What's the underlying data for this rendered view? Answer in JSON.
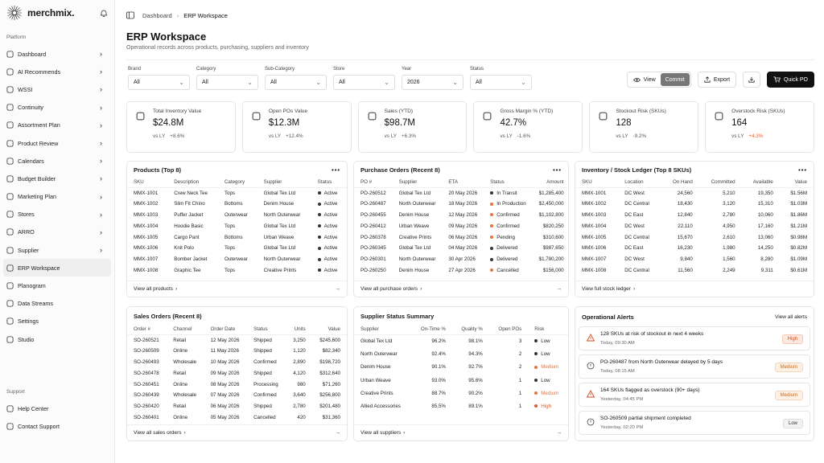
{
  "app": {
    "name": "merchmix."
  },
  "sidebar": {
    "section_platform": "Platform",
    "items": [
      {
        "label": "Dashboard",
        "icon": "dashboard-icon"
      },
      {
        "label": "AI Recommends",
        "icon": "ai-icon"
      },
      {
        "label": "WSSI",
        "icon": "wssi-icon"
      },
      {
        "label": "Continuity",
        "icon": "continuity-icon"
      },
      {
        "label": "Assortment Plan",
        "icon": "assortment-icon"
      },
      {
        "label": "Product Review",
        "icon": "product-review-icon"
      },
      {
        "label": "Calendars",
        "icon": "calendar-icon"
      },
      {
        "label": "Budget Builder",
        "icon": "budget-icon"
      },
      {
        "label": "Marketing Plan",
        "icon": "marketing-icon"
      },
      {
        "label": "Stores",
        "icon": "store-icon"
      },
      {
        "label": "ARRO",
        "icon": "arro-icon"
      },
      {
        "label": "Supplier",
        "icon": "supplier-icon"
      },
      {
        "label": "ERP Workspace",
        "icon": "erp-icon"
      },
      {
        "label": "Planogram",
        "icon": "planogram-icon"
      },
      {
        "label": "Data Streams",
        "icon": "data-streams-icon"
      },
      {
        "label": "Settings",
        "icon": "settings-icon"
      },
      {
        "label": "Studio",
        "icon": "studio-icon"
      }
    ],
    "section_support": "Support",
    "support_items": [
      {
        "label": "Help Center",
        "icon": "help-icon"
      },
      {
        "label": "Contact Support",
        "icon": "contact-icon"
      }
    ]
  },
  "breadcrumb": {
    "root": "Dashboard",
    "current": "ERP Workspace"
  },
  "page": {
    "title": "ERP Workspace",
    "subtitle": "Operational records across products, purchasing, suppliers and inventory"
  },
  "filters": [
    {
      "label": "Brand",
      "value": "All"
    },
    {
      "label": "Category",
      "value": "All"
    },
    {
      "label": "Sub-Category",
      "value": "All"
    },
    {
      "label": "Store",
      "value": "All"
    },
    {
      "label": "Year",
      "value": "2026"
    },
    {
      "label": "Status",
      "value": "All"
    }
  ],
  "actions": {
    "view": "View",
    "commit": "Commit",
    "export": "Export",
    "quick_po": "Quick PO"
  },
  "kpis": [
    {
      "label": "Total Inventory Value",
      "value": "$24.8M",
      "vs": "vs LY",
      "delta": "+8.6%",
      "trend": "pos",
      "icon": "box-icon"
    },
    {
      "label": "Open POs Value",
      "value": "$12.3M",
      "vs": "vs LY",
      "delta": "+12.4%",
      "trend": "pos",
      "icon": "clipboard-icon"
    },
    {
      "label": "Sales (YTD)",
      "value": "$98.7M",
      "vs": "vs LY",
      "delta": "+6.3%",
      "trend": "pos",
      "icon": "trend-up-icon"
    },
    {
      "label": "Gross Margin % (YTD)",
      "value": "42.7%",
      "vs": "vs LY",
      "delta": "-1.6%",
      "trend": "pos",
      "icon": "pie-icon"
    },
    {
      "label": "Stockout Risk (SKUs)",
      "value": "128",
      "vs": "vs LY",
      "delta": "-9.2%",
      "trend": "pos",
      "icon": "warning-icon"
    },
    {
      "label": "Overstock Risk (SKUs)",
      "value": "164",
      "vs": "vs LY",
      "delta": "+4.3%",
      "trend": "neg",
      "icon": "stack-icon"
    }
  ],
  "products": {
    "title": "Products (Top 8)",
    "more": "•••",
    "columns": [
      "SKU",
      "Description",
      "Category",
      "Supplier",
      "Status"
    ],
    "rows": [
      [
        "MMX-1001",
        "Crew Neck Tee",
        "Tops",
        "Global Tex Ltd",
        "Active"
      ],
      [
        "MMX-1002",
        "Slim Fit Chino",
        "Bottoms",
        "Denim House",
        "Active"
      ],
      [
        "MMX-1003",
        "Puffer Jacket",
        "Outerwear",
        "North Outerwear",
        "Active"
      ],
      [
        "MMX-1004",
        "Hoodie Basic",
        "Tops",
        "Global Tex Ltd",
        "Active"
      ],
      [
        "MMX-1005",
        "Cargo Pant",
        "Bottoms",
        "Urban Weave",
        "Active"
      ],
      [
        "MMX-1006",
        "Knit Polo",
        "Tops",
        "Global Tex Ltd",
        "Active"
      ],
      [
        "MMX-1007",
        "Bomber Jacket",
        "Outerwear",
        "North Outerwear",
        "Active"
      ],
      [
        "MMX-1008",
        "Graphic Tee",
        "Tops",
        "Creative Prints",
        "Active"
      ]
    ],
    "footer": "View all products"
  },
  "purchase_orders": {
    "title": "Purchase Orders (Recent 8)",
    "more": "•••",
    "columns": [
      "PO #",
      "Supplier",
      "ETA",
      "Status",
      "Amount"
    ],
    "rows": [
      [
        "PO-260512",
        "Global Tex Ltd",
        "20 May 2026",
        "In Transit",
        "$1,285,400"
      ],
      [
        "PO-260487",
        "North Outerwear",
        "18 May 2026",
        "In Production",
        "$2,450,000"
      ],
      [
        "PO-260455",
        "Denim House",
        "12 May 2026",
        "Confirmed",
        "$1,102,800"
      ],
      [
        "PO-260412",
        "Urban Weave",
        "09 May 2026",
        "Confirmed",
        "$820,250"
      ],
      [
        "PO-260378",
        "Creative Prints",
        "06 May 2026",
        "Pending",
        "$310,600"
      ],
      [
        "PO-260345",
        "Global Tex Ltd",
        "04 May 2026",
        "Delivered",
        "$987,650"
      ],
      [
        "PO-260301",
        "North Outerwear",
        "30 Apr 2026",
        "Delivered",
        "$1,780,200"
      ],
      [
        "PO-260250",
        "Denim House",
        "27 Apr 2026",
        "Cancelled",
        "$156,000"
      ]
    ],
    "status_colors": {
      "In Transit": "#333333",
      "In Production": "#e8743b",
      "Confirmed": "#e8743b",
      "Pending": "#e8743b",
      "Delivered": "#333333",
      "Cancelled": "#e8743b"
    },
    "footer": "View all purchase orders"
  },
  "inventory": {
    "title": "Inventory / Stock Ledger (Top 8 SKUs)",
    "more": "•••",
    "columns": [
      "SKU",
      "Location",
      "On Hand",
      "Committed",
      "Available",
      "Value"
    ],
    "rows": [
      [
        "MMX-1001",
        "DC West",
        "24,560",
        "5,210",
        "19,350",
        "$1.56M"
      ],
      [
        "MMX-1002",
        "DC Central",
        "18,430",
        "3,120",
        "15,310",
        "$1.03M"
      ],
      [
        "MMX-1003",
        "DC East",
        "12,840",
        "2,780",
        "10,060",
        "$1.86M"
      ],
      [
        "MMX-1004",
        "DC West",
        "22,110",
        "4,950",
        "17,160",
        "$1.21M"
      ],
      [
        "MMX-1005",
        "DC Central",
        "15,670",
        "2,610",
        "13,060",
        "$0.98M"
      ],
      [
        "MMX-1006",
        "DC East",
        "16,230",
        "1,980",
        "14,250",
        "$0.82M"
      ],
      [
        "MMX-1007",
        "DC West",
        "9,840",
        "1,560",
        "8,280",
        "$1.09M"
      ],
      [
        "MMX-1008",
        "DC Central",
        "11,560",
        "2,249",
        "9,311",
        "$0.61M"
      ]
    ],
    "footer": "View full stock ledger"
  },
  "sales_orders": {
    "title": "Sales Orders (Recent 8)",
    "columns": [
      "Order #",
      "Channel",
      "Order Date",
      "Status",
      "Units",
      "Value"
    ],
    "rows": [
      [
        "SO-260521",
        "Retail",
        "12 May 2026",
        "Shipped",
        "3,250",
        "$245,600"
      ],
      [
        "SO-260509",
        "Online",
        "11 May 2026",
        "Shipped",
        "1,120",
        "$82,340"
      ],
      [
        "SO-260493",
        "Wholesale",
        "10 May 2026",
        "Confirmed",
        "2,890",
        "$198,720"
      ],
      [
        "SO-260478",
        "Retail",
        "09 May 2026",
        "Shipped",
        "4,120",
        "$312,640"
      ],
      [
        "SO-260451",
        "Online",
        "08 May 2026",
        "Processing",
        "980",
        "$71,260"
      ],
      [
        "SO-260439",
        "Wholesale",
        "07 May 2026",
        "Confirmed",
        "3,640",
        "$256,800"
      ],
      [
        "SO-260420",
        "Retail",
        "06 May 2026",
        "Shipped",
        "2,780",
        "$201,480"
      ],
      [
        "SO-260401",
        "Online",
        "05 May 2026",
        "Cancelled",
        "420",
        "$31,360"
      ]
    ],
    "footer": "View all sales orders"
  },
  "supplier_status": {
    "title": "Supplier Status Summary",
    "columns": [
      "Supplier",
      "On-Time %",
      "Quality %",
      "Open POs",
      "Risk"
    ],
    "rows": [
      [
        "Global Tex Ltd",
        "96.2%",
        "98.1%",
        "3",
        "Low"
      ],
      [
        "North Outerwear",
        "92.4%",
        "94.3%",
        "2",
        "Low"
      ],
      [
        "Denim House",
        "90.1%",
        "92.7%",
        "2",
        "Medium"
      ],
      [
        "Urban Weave",
        "93.0%",
        "95.6%",
        "1",
        "Low"
      ],
      [
        "Creative Prints",
        "88.7%",
        "90.2%",
        "1",
        "Medium"
      ],
      [
        "Allied Accessories",
        "85.5%",
        "89.1%",
        "1",
        "High"
      ]
    ],
    "risk_colors": {
      "Low": "#333333",
      "Medium": "#e8743b",
      "High": "#e05a2b"
    },
    "footer": "View all suppliers"
  },
  "alerts": {
    "title": "Operational Alerts",
    "view_all": "View all alerts",
    "items": [
      {
        "text": "128 SKUs at risk of stockout in next 4 weeks",
        "time": "Today, 09:30 AM",
        "level": "High",
        "icon": "warning-icon"
      },
      {
        "text": "PO-260487 from North Outerwear delayed by 5 days",
        "time": "Today, 08:15 AM",
        "level": "Medium",
        "icon": "clock-icon"
      },
      {
        "text": "164 SKUs flagged as overstock (90+ days)",
        "time": "Yesterday, 04:45 PM",
        "level": "Medium",
        "icon": "warning-icon"
      },
      {
        "text": "SO-260509 partial shipment completed",
        "time": "Yesterday, 02:20 PM",
        "level": "Low",
        "icon": "info-icon"
      }
    ]
  }
}
